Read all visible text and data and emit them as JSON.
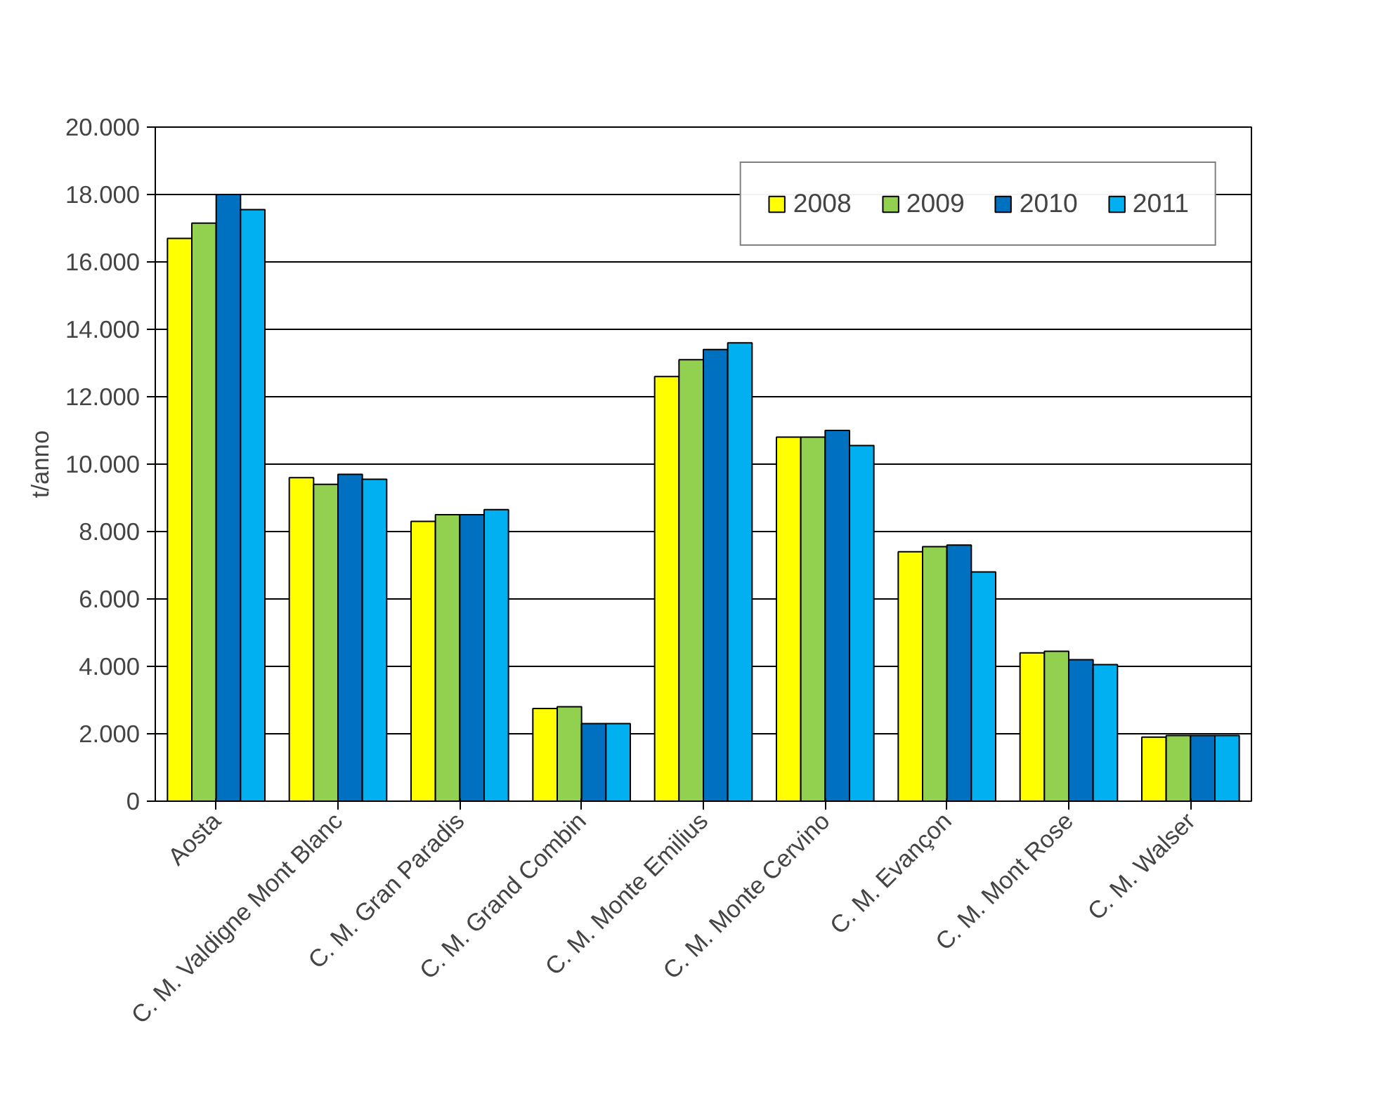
{
  "chart_data": {
    "type": "bar",
    "ylabel": "t/anno",
    "categories": [
      "Aosta",
      "C. M. Valdigne Mont Blanc",
      "C. M. Gran Paradis",
      "C. M. Grand Combin",
      "C. M. Monte Emilius",
      "C. M. Monte Cervino",
      "C. M. Evançon",
      "C. M. Mont Rose",
      "C. M. Walser"
    ],
    "series": [
      {
        "name": "2008",
        "color": "#ffff00",
        "values": [
          16700,
          9600,
          8300,
          2750,
          12600,
          10800,
          7400,
          4400,
          1900
        ]
      },
      {
        "name": "2009",
        "color": "#92d050",
        "values": [
          17150,
          9400,
          8500,
          2800,
          13100,
          10800,
          7550,
          4450,
          1950
        ]
      },
      {
        "name": "2010",
        "color": "#0070c0",
        "values": [
          18000,
          9700,
          8500,
          2300,
          13400,
          11000,
          7600,
          4200,
          1950
        ]
      },
      {
        "name": "2011",
        "color": "#00b0f0",
        "values": [
          17550,
          9550,
          8650,
          2300,
          13600,
          10550,
          6800,
          4050,
          1950
        ]
      }
    ],
    "ylim": [
      0,
      20000
    ],
    "yticks": [
      {
        "value": 0,
        "label": "0"
      },
      {
        "value": 2000,
        "label": "2.000"
      },
      {
        "value": 4000,
        "label": "4.000"
      },
      {
        "value": 6000,
        "label": "6.000"
      },
      {
        "value": 8000,
        "label": "8.000"
      },
      {
        "value": 10000,
        "label": "10.000"
      },
      {
        "value": 12000,
        "label": "12.000"
      },
      {
        "value": 14000,
        "label": "14.000"
      },
      {
        "value": 16000,
        "label": "16.000"
      },
      {
        "value": 18000,
        "label": "18.000"
      },
      {
        "value": 20000,
        "label": "20.000"
      }
    ],
    "grid": "y",
    "legend": "top right"
  }
}
